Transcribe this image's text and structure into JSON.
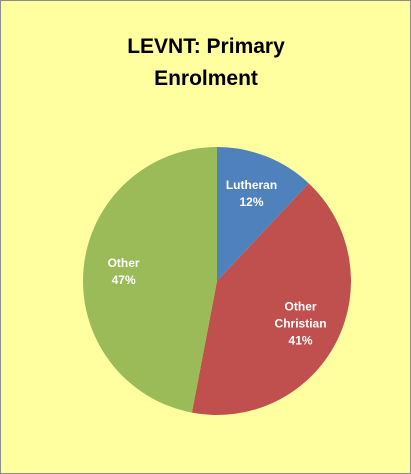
{
  "chart_data": {
    "type": "pie",
    "title": "LEVNT: Primary Enrolment",
    "categories": [
      "Lutheran",
      "Other Christian",
      "Other"
    ],
    "values": [
      12,
      41,
      47
    ],
    "value_labels": [
      "12%",
      "41%",
      "47%"
    ],
    "colors": [
      "#4f81bd",
      "#c0504d",
      "#9bbb59"
    ]
  }
}
